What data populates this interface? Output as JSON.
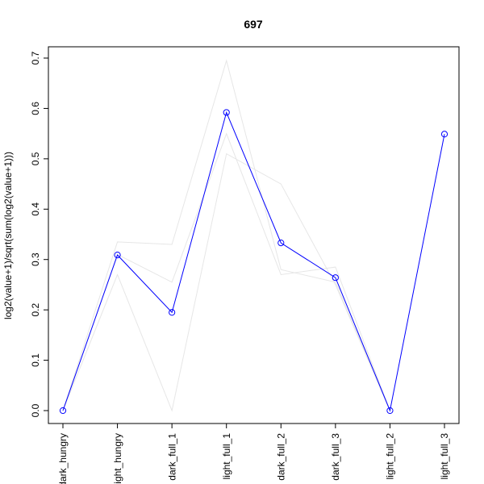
{
  "chart_data": {
    "type": "line",
    "title": "697",
    "xlabel": "",
    "ylabel": "log2(value+1)/sqrt(sum(log2(value+1)))",
    "categories": [
      "dark_hungry",
      "light_hungry",
      "dark_full_1",
      "light_full_1",
      "dark_full_2",
      "dark_full_3",
      "light_full_2",
      "light_full_3"
    ],
    "ylim": [
      0,
      0.7
    ],
    "yticks": [
      "0.0",
      "0.1",
      "0.2",
      "0.3",
      "0.4",
      "0.5",
      "0.6",
      "0.7"
    ],
    "grid": false,
    "legend": "none",
    "series": [
      {
        "values": [
          0.0,
          0.309,
          0.195,
          0.592,
          0.333,
          0.264,
          0.0,
          0.549
        ],
        "color": "#0000ff",
        "markers": "open-circle"
      }
    ],
    "background_series": [
      {
        "values": [
          0.0,
          0.335,
          0.33,
          0.695,
          0.28,
          0.255,
          0.0,
          null
        ],
        "color": "#e6e6e6"
      },
      {
        "values": [
          0.0,
          0.27,
          0.0,
          0.51,
          0.45,
          0.25,
          0.0,
          null
        ],
        "color": "#e6e6e6"
      },
      {
        "values": [
          0.0,
          0.31,
          0.255,
          0.55,
          0.27,
          0.285,
          0.0,
          null
        ],
        "color": "#e6e6e6"
      }
    ]
  }
}
